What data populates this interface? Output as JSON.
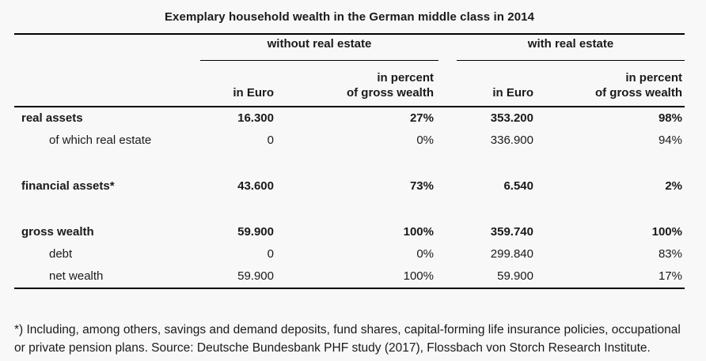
{
  "title": "Exemplary household wealth in the German middle class in 2014",
  "footnote": "*) Including, among others, savings and demand deposits, fund shares, capital-forming life insurance policies, occupational or private pension plans. Source: Deutsche Bundesbank PHF study (2017), Flossbach von Storch Research Institute.",
  "colors": {
    "background": "#f8f8f8",
    "text": "#1a1a1a",
    "rule": "#000000"
  },
  "chart_data": {
    "type": "table",
    "title": "Exemplary household wealth in the German middle class in 2014",
    "column_groups": [
      {
        "label": "without real estate"
      },
      {
        "label": "with real estate"
      }
    ],
    "column_headers": [
      {
        "line1": "",
        "line2": "in Euro"
      },
      {
        "line1": "in percent",
        "line2": "of gross wealth"
      },
      {
        "line1": "",
        "line2": "in Euro"
      },
      {
        "line1": "in percent",
        "line2": "of gross wealth"
      }
    ],
    "rows": [
      {
        "label": "real assets",
        "emphasis": true,
        "indent": false,
        "spacer_before": false,
        "values": [
          "16.300",
          "27%",
          "353.200",
          "98%"
        ]
      },
      {
        "label": "of which real estate",
        "emphasis": false,
        "indent": true,
        "spacer_before": false,
        "values": [
          "0",
          "0%",
          "336.900",
          "94%"
        ]
      },
      {
        "label": "financial assets*",
        "emphasis": true,
        "indent": false,
        "spacer_before": true,
        "values": [
          "43.600",
          "73%",
          "6.540",
          "2%"
        ]
      },
      {
        "label": "gross wealth",
        "emphasis": true,
        "indent": false,
        "spacer_before": true,
        "values": [
          "59.900",
          "100%",
          "359.740",
          "100%"
        ]
      },
      {
        "label": "debt",
        "emphasis": false,
        "indent": true,
        "spacer_before": false,
        "values": [
          "0",
          "0%",
          "299.840",
          "83%"
        ]
      },
      {
        "label": "net wealth",
        "emphasis": false,
        "indent": true,
        "spacer_before": false,
        "values": [
          "59.900",
          "100%",
          "59.900",
          "17%"
        ]
      }
    ],
    "footnote": "*) Including, among others, savings and demand deposits, fund shares, capital-forming life insurance policies, occupational or private pension plans. Source: Deutsche Bundesbank PHF study (2017), Flossbach von Storch Research Institute."
  }
}
